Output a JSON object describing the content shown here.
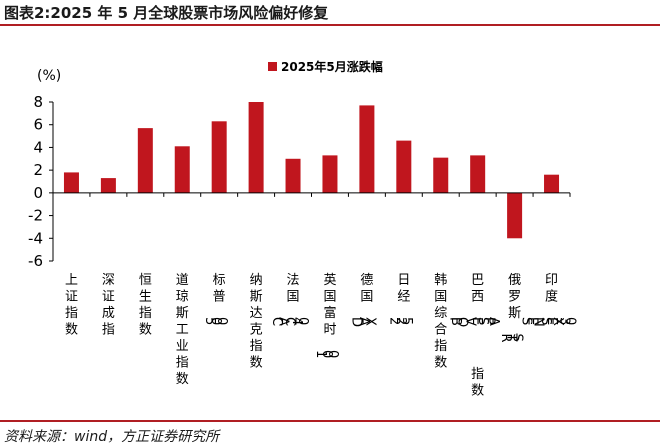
{
  "figure": {
    "title": "图表2:2025 年 5 月全球股票市场风险偏好修复",
    "source": "资料来源：wind，方正证券研究所"
  },
  "colors": {
    "bar": "#C0161E",
    "rule": "#B01E23",
    "axis": "#000000"
  },
  "chart_data": {
    "type": "bar",
    "title": "",
    "ylabel": "(%)",
    "xlabel": "",
    "ylim": [
      -6,
      8
    ],
    "yticks": [
      "-6",
      "-4",
      "-2",
      "0",
      "2",
      "4",
      "6",
      "8"
    ],
    "grid": false,
    "legend_position": "top-center",
    "categories": [
      "上证指数",
      "深证成指",
      "恒生指数",
      "道琼斯工业指数",
      "标普500",
      "纳斯达克指数",
      "法国CAC40",
      "英国富时100",
      "德国DAX",
      "日经225",
      "韩国综合指数",
      "巴西IBOVESPA指数",
      "俄罗斯RTS",
      "印度SENSEX30"
    ],
    "series": [
      {
        "name": "2025年5月涨跌幅",
        "values": [
          1.8,
          1.3,
          5.7,
          4.1,
          6.3,
          8.0,
          3.0,
          3.3,
          7.7,
          4.6,
          3.1,
          3.3,
          -4.0,
          1.6
        ]
      }
    ]
  }
}
